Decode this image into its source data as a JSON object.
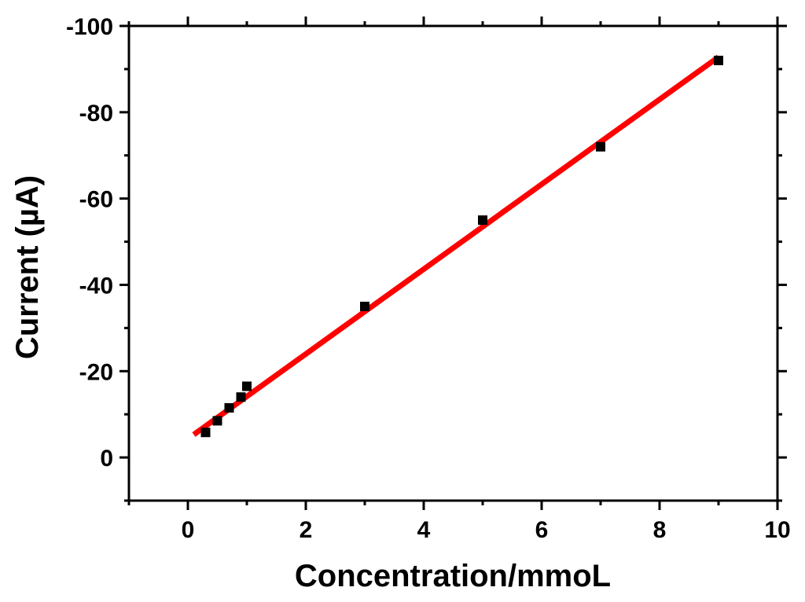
{
  "chart_data": {
    "type": "scatter",
    "xlabel": "Concentration/mmoL",
    "ylabel": "Current (µA)",
    "xlim": [
      -1,
      10
    ],
    "ylim": [
      10,
      -100
    ],
    "y_axis_inverted": true,
    "grid": false,
    "legend": "none",
    "x_ticks": [
      0,
      2,
      4,
      6,
      8,
      10
    ],
    "y_ticks": [
      0,
      -20,
      -40,
      -60,
      -80,
      -100
    ],
    "x_tick_labels": [
      "0",
      "2",
      "4",
      "6",
      "8",
      "10"
    ],
    "y_tick_labels": [
      "0",
      "-20",
      "-40",
      "-60",
      "-80",
      "-100"
    ],
    "series": [
      {
        "kind": "points",
        "marker": "square",
        "color": "#000000",
        "points": [
          {
            "x": 0.3,
            "y": -5.8
          },
          {
            "x": 0.5,
            "y": -8.5
          },
          {
            "x": 0.7,
            "y": -11.5
          },
          {
            "x": 0.9,
            "y": -14.0
          },
          {
            "x": 1.0,
            "y": -16.5
          },
          {
            "x": 3.0,
            "y": -35.0
          },
          {
            "x": 5.0,
            "y": -55.0
          },
          {
            "x": 7.0,
            "y": -72.0
          },
          {
            "x": 9.0,
            "y": -92.0
          }
        ]
      },
      {
        "kind": "fit-line",
        "color": "#ff0000",
        "points": [
          {
            "x": 0.1,
            "y": -5.3
          },
          {
            "x": 9.0,
            "y": -92.8
          }
        ]
      }
    ]
  }
}
